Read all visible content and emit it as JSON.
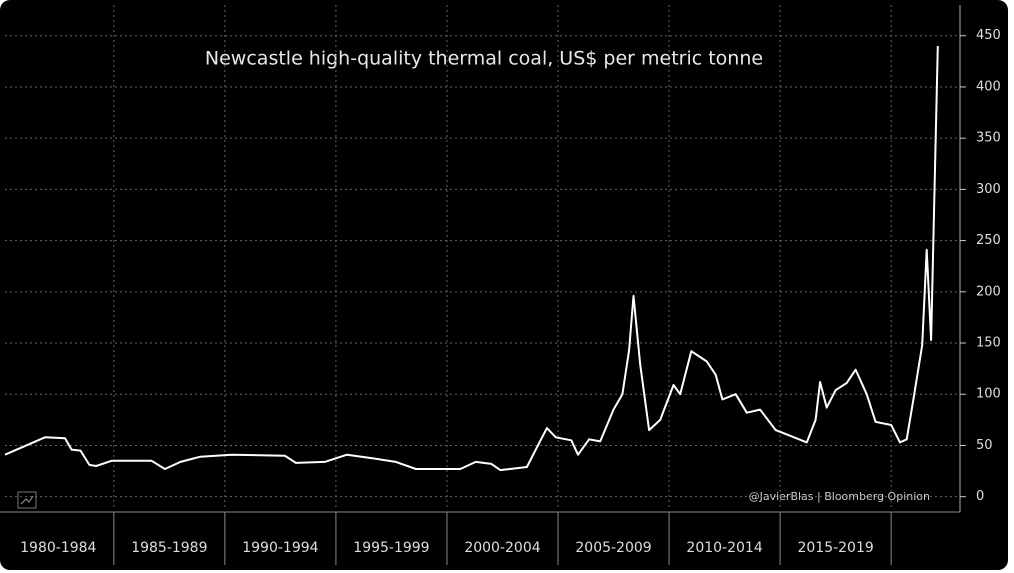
{
  "chart_data": {
    "type": "line",
    "title": "Newcastle high-quality thermal coal, US$ per metric tonne",
    "credit": "@JavierBlas | Bloomberg Opinion",
    "color": "#ffffff",
    "x": [
      1980.1,
      1981.9,
      1982.8,
      1983.1,
      1983.5,
      1983.9,
      1984.2,
      1984.9,
      1986.7,
      1987.3,
      1988.0,
      1988.9,
      1990.3,
      1992.7,
      1993.2,
      1994.5,
      1995.5,
      1996.8,
      1997.7,
      1998.6,
      2000.6,
      2001.3,
      2002.0,
      2002.4,
      2003.6,
      2004.0,
      2004.5,
      2004.9,
      2005.6,
      2005.9,
      2006.4,
      2006.9,
      2007.5,
      2007.9,
      2008.2,
      2008.4,
      2008.7,
      2009.1,
      2009.6,
      2010.2,
      2010.5,
      2011.0,
      2011.7,
      2012.1,
      2012.4,
      2013.0,
      2013.5,
      2014.1,
      2014.8,
      2015.5,
      2016.2,
      2016.6,
      2016.8,
      2017.1,
      2017.5,
      2018.0,
      2018.4,
      2018.9,
      2019.3,
      2020.0,
      2020.4,
      2020.7,
      2021.0,
      2021.4,
      2021.6,
      2021.8,
      2022.1
    ],
    "values": [
      41,
      58,
      57,
      46,
      45,
      31,
      30,
      35,
      35,
      27,
      34,
      39,
      41,
      40,
      33,
      34,
      41,
      37,
      34,
      27,
      27,
      34,
      32,
      26,
      29,
      46,
      67,
      58,
      55,
      41,
      56,
      54,
      85,
      100,
      143,
      196,
      129,
      65,
      75,
      109,
      100,
      142,
      132,
      119,
      95,
      100,
      82,
      85,
      65,
      59,
      53,
      75,
      112,
      87,
      104,
      111,
      124,
      100,
      73,
      70,
      53,
      56,
      95,
      148,
      241,
      153,
      440
    ],
    "xlim": [
      1980.1,
      2023.1
    ],
    "ylim": [
      -13,
      480
    ],
    "yticks": [
      0,
      50,
      100,
      150,
      200,
      250,
      300,
      350,
      400,
      450
    ],
    "xbands": [
      {
        "label": "1980-1984",
        "from": 1980,
        "to": 1985
      },
      {
        "label": "1985-1989",
        "from": 1985,
        "to": 1990
      },
      {
        "label": "1990-1994",
        "from": 1990,
        "to": 1995
      },
      {
        "label": "1995-1999",
        "from": 1995,
        "to": 2000
      },
      {
        "label": "2000-2004",
        "from": 2000,
        "to": 2005
      },
      {
        "label": "2005-2009",
        "from": 2005,
        "to": 2010
      },
      {
        "label": "2010-2014",
        "from": 2010,
        "to": 2015
      },
      {
        "label": "2015-2019",
        "from": 2015,
        "to": 2020
      }
    ],
    "grid": true
  }
}
